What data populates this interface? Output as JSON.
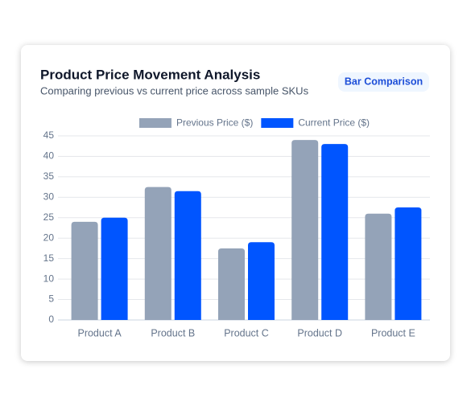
{
  "chart_data": {
    "type": "bar",
    "title": "Product Price Movement Analysis",
    "subtitle": "Comparing previous vs current price across sample SKUs",
    "badge": "Bar Comparison",
    "categories": [
      "Product A",
      "Product B",
      "Product C",
      "Product D",
      "Product E"
    ],
    "series": [
      {
        "name": "Previous Price ($)",
        "color": "#94a3b8",
        "values": [
          24,
          32.5,
          17.5,
          44,
          26
        ]
      },
      {
        "name": "Current Price ($)",
        "color": "#0055ff",
        "values": [
          25,
          31.5,
          19,
          43,
          27.5
        ]
      }
    ],
    "ylim": [
      0,
      45
    ],
    "yticks": [
      0,
      5,
      10,
      15,
      20,
      25,
      30,
      35,
      40,
      45
    ],
    "grid": true,
    "legend": "top"
  }
}
